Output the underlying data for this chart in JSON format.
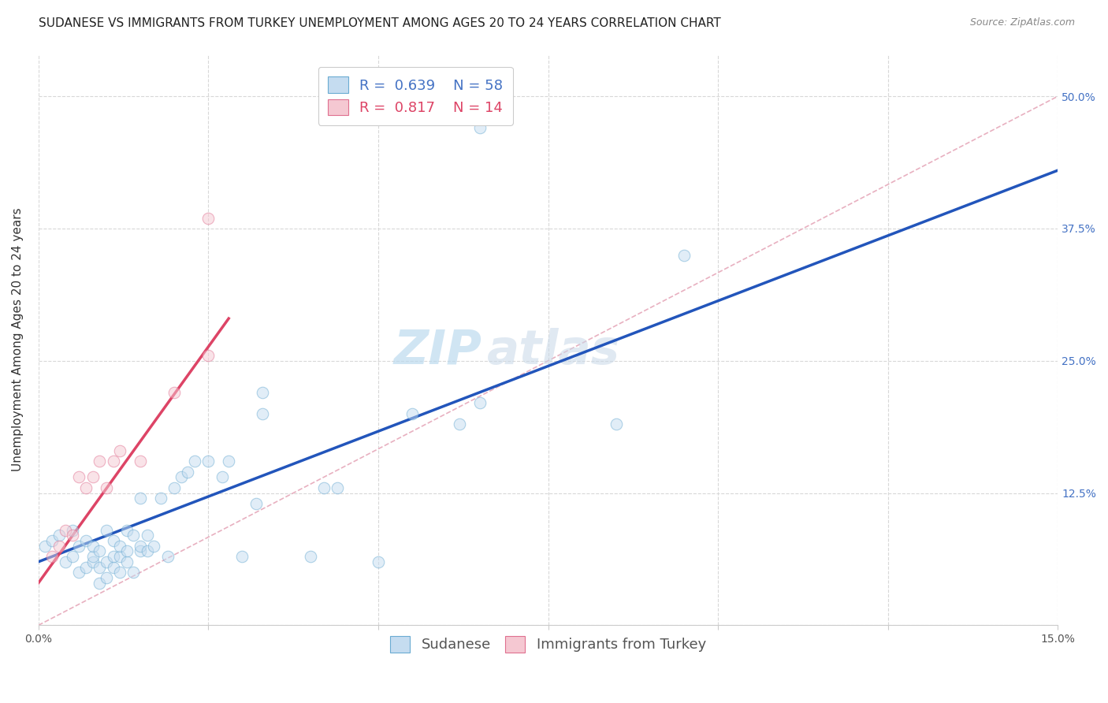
{
  "title": "SUDANESE VS IMMIGRANTS FROM TURKEY UNEMPLOYMENT AMONG AGES 20 TO 24 YEARS CORRELATION CHART",
  "source": "Source: ZipAtlas.com",
  "ylabel": "Unemployment Among Ages 20 to 24 years",
  "xlim": [
    0.0,
    0.15
  ],
  "ylim": [
    0.0,
    0.54
  ],
  "xticks": [
    0.0,
    0.025,
    0.05,
    0.075,
    0.1,
    0.125,
    0.15
  ],
  "xtick_labels": [
    "0.0%",
    "",
    "",
    "",
    "",
    "",
    "15.0%"
  ],
  "yticks_right": [
    0.0,
    0.125,
    0.25,
    0.375,
    0.5
  ],
  "ytick_labels_right": [
    "",
    "12.5%",
    "25.0%",
    "37.5%",
    "50.0%"
  ],
  "blue_scatter_x": [
    0.001,
    0.002,
    0.003,
    0.004,
    0.005,
    0.005,
    0.006,
    0.006,
    0.007,
    0.007,
    0.008,
    0.008,
    0.008,
    0.009,
    0.009,
    0.009,
    0.01,
    0.01,
    0.01,
    0.011,
    0.011,
    0.011,
    0.012,
    0.012,
    0.012,
    0.013,
    0.013,
    0.013,
    0.014,
    0.014,
    0.015,
    0.015,
    0.015,
    0.016,
    0.016,
    0.017,
    0.018,
    0.019,
    0.02,
    0.021,
    0.022,
    0.023,
    0.025,
    0.027,
    0.028,
    0.03,
    0.032,
    0.033,
    0.033,
    0.04,
    0.042,
    0.044,
    0.05,
    0.055,
    0.062,
    0.065,
    0.085,
    0.095
  ],
  "blue_scatter_y": [
    0.075,
    0.08,
    0.085,
    0.06,
    0.065,
    0.09,
    0.05,
    0.075,
    0.055,
    0.08,
    0.06,
    0.065,
    0.075,
    0.04,
    0.055,
    0.07,
    0.045,
    0.06,
    0.09,
    0.055,
    0.065,
    0.08,
    0.05,
    0.065,
    0.075,
    0.06,
    0.07,
    0.09,
    0.05,
    0.085,
    0.07,
    0.075,
    0.12,
    0.07,
    0.085,
    0.075,
    0.12,
    0.065,
    0.13,
    0.14,
    0.145,
    0.155,
    0.155,
    0.14,
    0.155,
    0.065,
    0.115,
    0.2,
    0.22,
    0.065,
    0.13,
    0.13,
    0.06,
    0.2,
    0.19,
    0.21,
    0.19,
    0.35
  ],
  "pink_scatter_x": [
    0.002,
    0.003,
    0.004,
    0.005,
    0.006,
    0.007,
    0.008,
    0.009,
    0.01,
    0.011,
    0.012,
    0.015,
    0.02,
    0.025
  ],
  "pink_scatter_y": [
    0.065,
    0.075,
    0.09,
    0.085,
    0.14,
    0.13,
    0.14,
    0.155,
    0.13,
    0.155,
    0.165,
    0.155,
    0.22,
    0.255
  ],
  "blue_outlier_x": [
    0.065
  ],
  "blue_outlier_y": [
    0.47
  ],
  "pink_outlier_x": [
    0.025
  ],
  "pink_outlier_y": [
    0.385
  ],
  "blue_line_x": [
    0.0,
    0.15
  ],
  "blue_line_y": [
    0.06,
    0.43
  ],
  "pink_line_x": [
    0.0,
    0.028
  ],
  "pink_line_y": [
    0.04,
    0.29
  ],
  "diag_line_x": [
    0.0,
    0.15
  ],
  "diag_line_y": [
    0.0,
    0.5
  ],
  "scatter_size": 110,
  "scatter_alpha": 0.5,
  "blue_color": "#6aabd2",
  "pink_color": "#e07090",
  "blue_fill": "#c5dcf0",
  "pink_fill": "#f5c8d2",
  "line_blue": "#2255bb",
  "line_pink": "#dd4466",
  "diag_color": "#c8c8c8",
  "grid_color": "#d8d8d8",
  "watermark_text": "ZIP",
  "watermark_text2": "atlas",
  "title_fontsize": 11,
  "axis_label_fontsize": 11,
  "tick_fontsize": 10,
  "legend_fontsize": 13
}
